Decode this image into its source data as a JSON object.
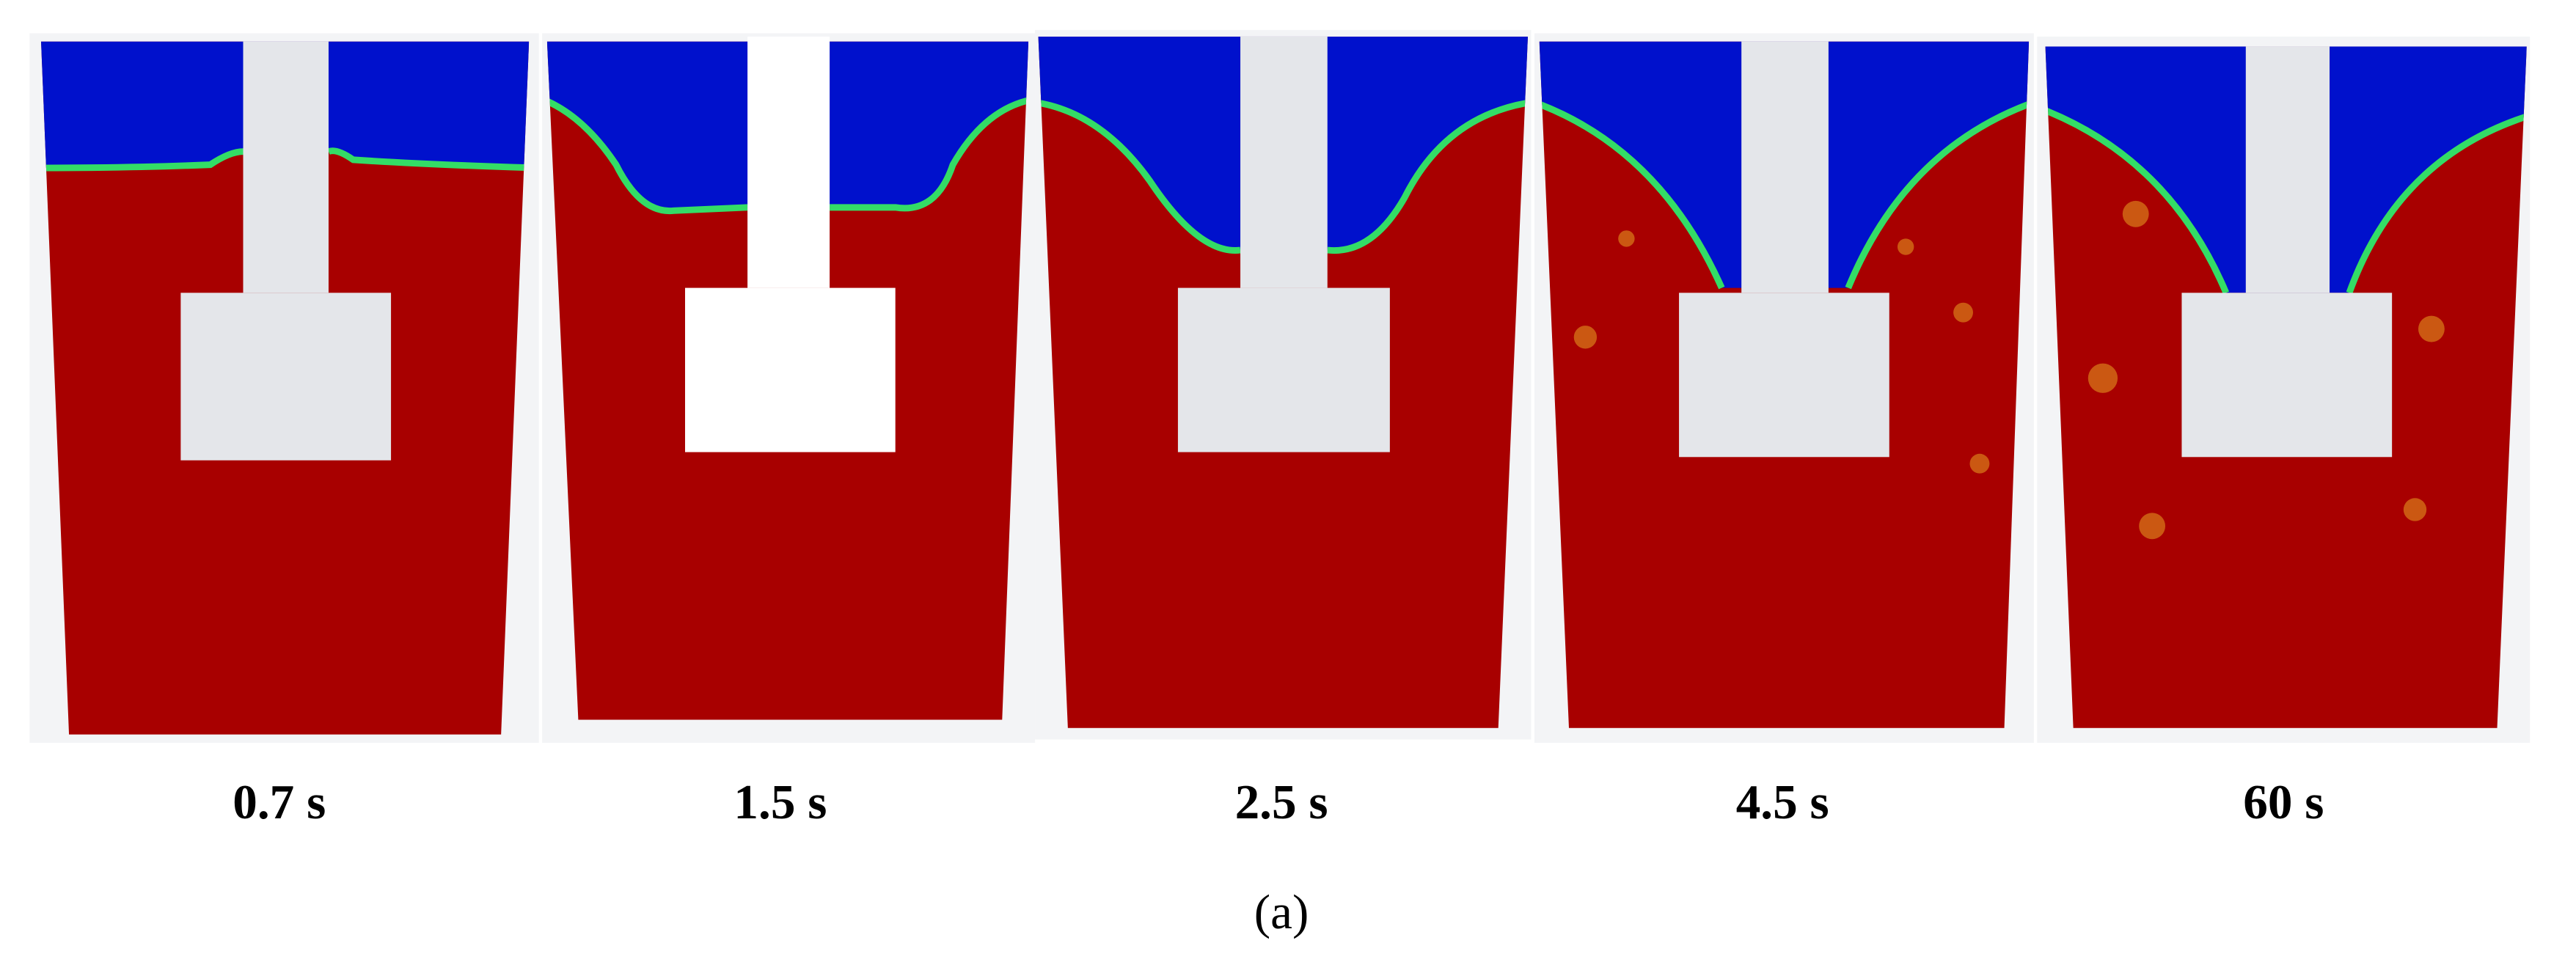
{
  "figure": {
    "panels": [
      {
        "label": "0.7 s"
      },
      {
        "label": "1.5 s"
      },
      {
        "label": "2.5 s"
      },
      {
        "label": "4.5 s"
      },
      {
        "label": "60 s"
      }
    ],
    "caption": "(a)"
  }
}
